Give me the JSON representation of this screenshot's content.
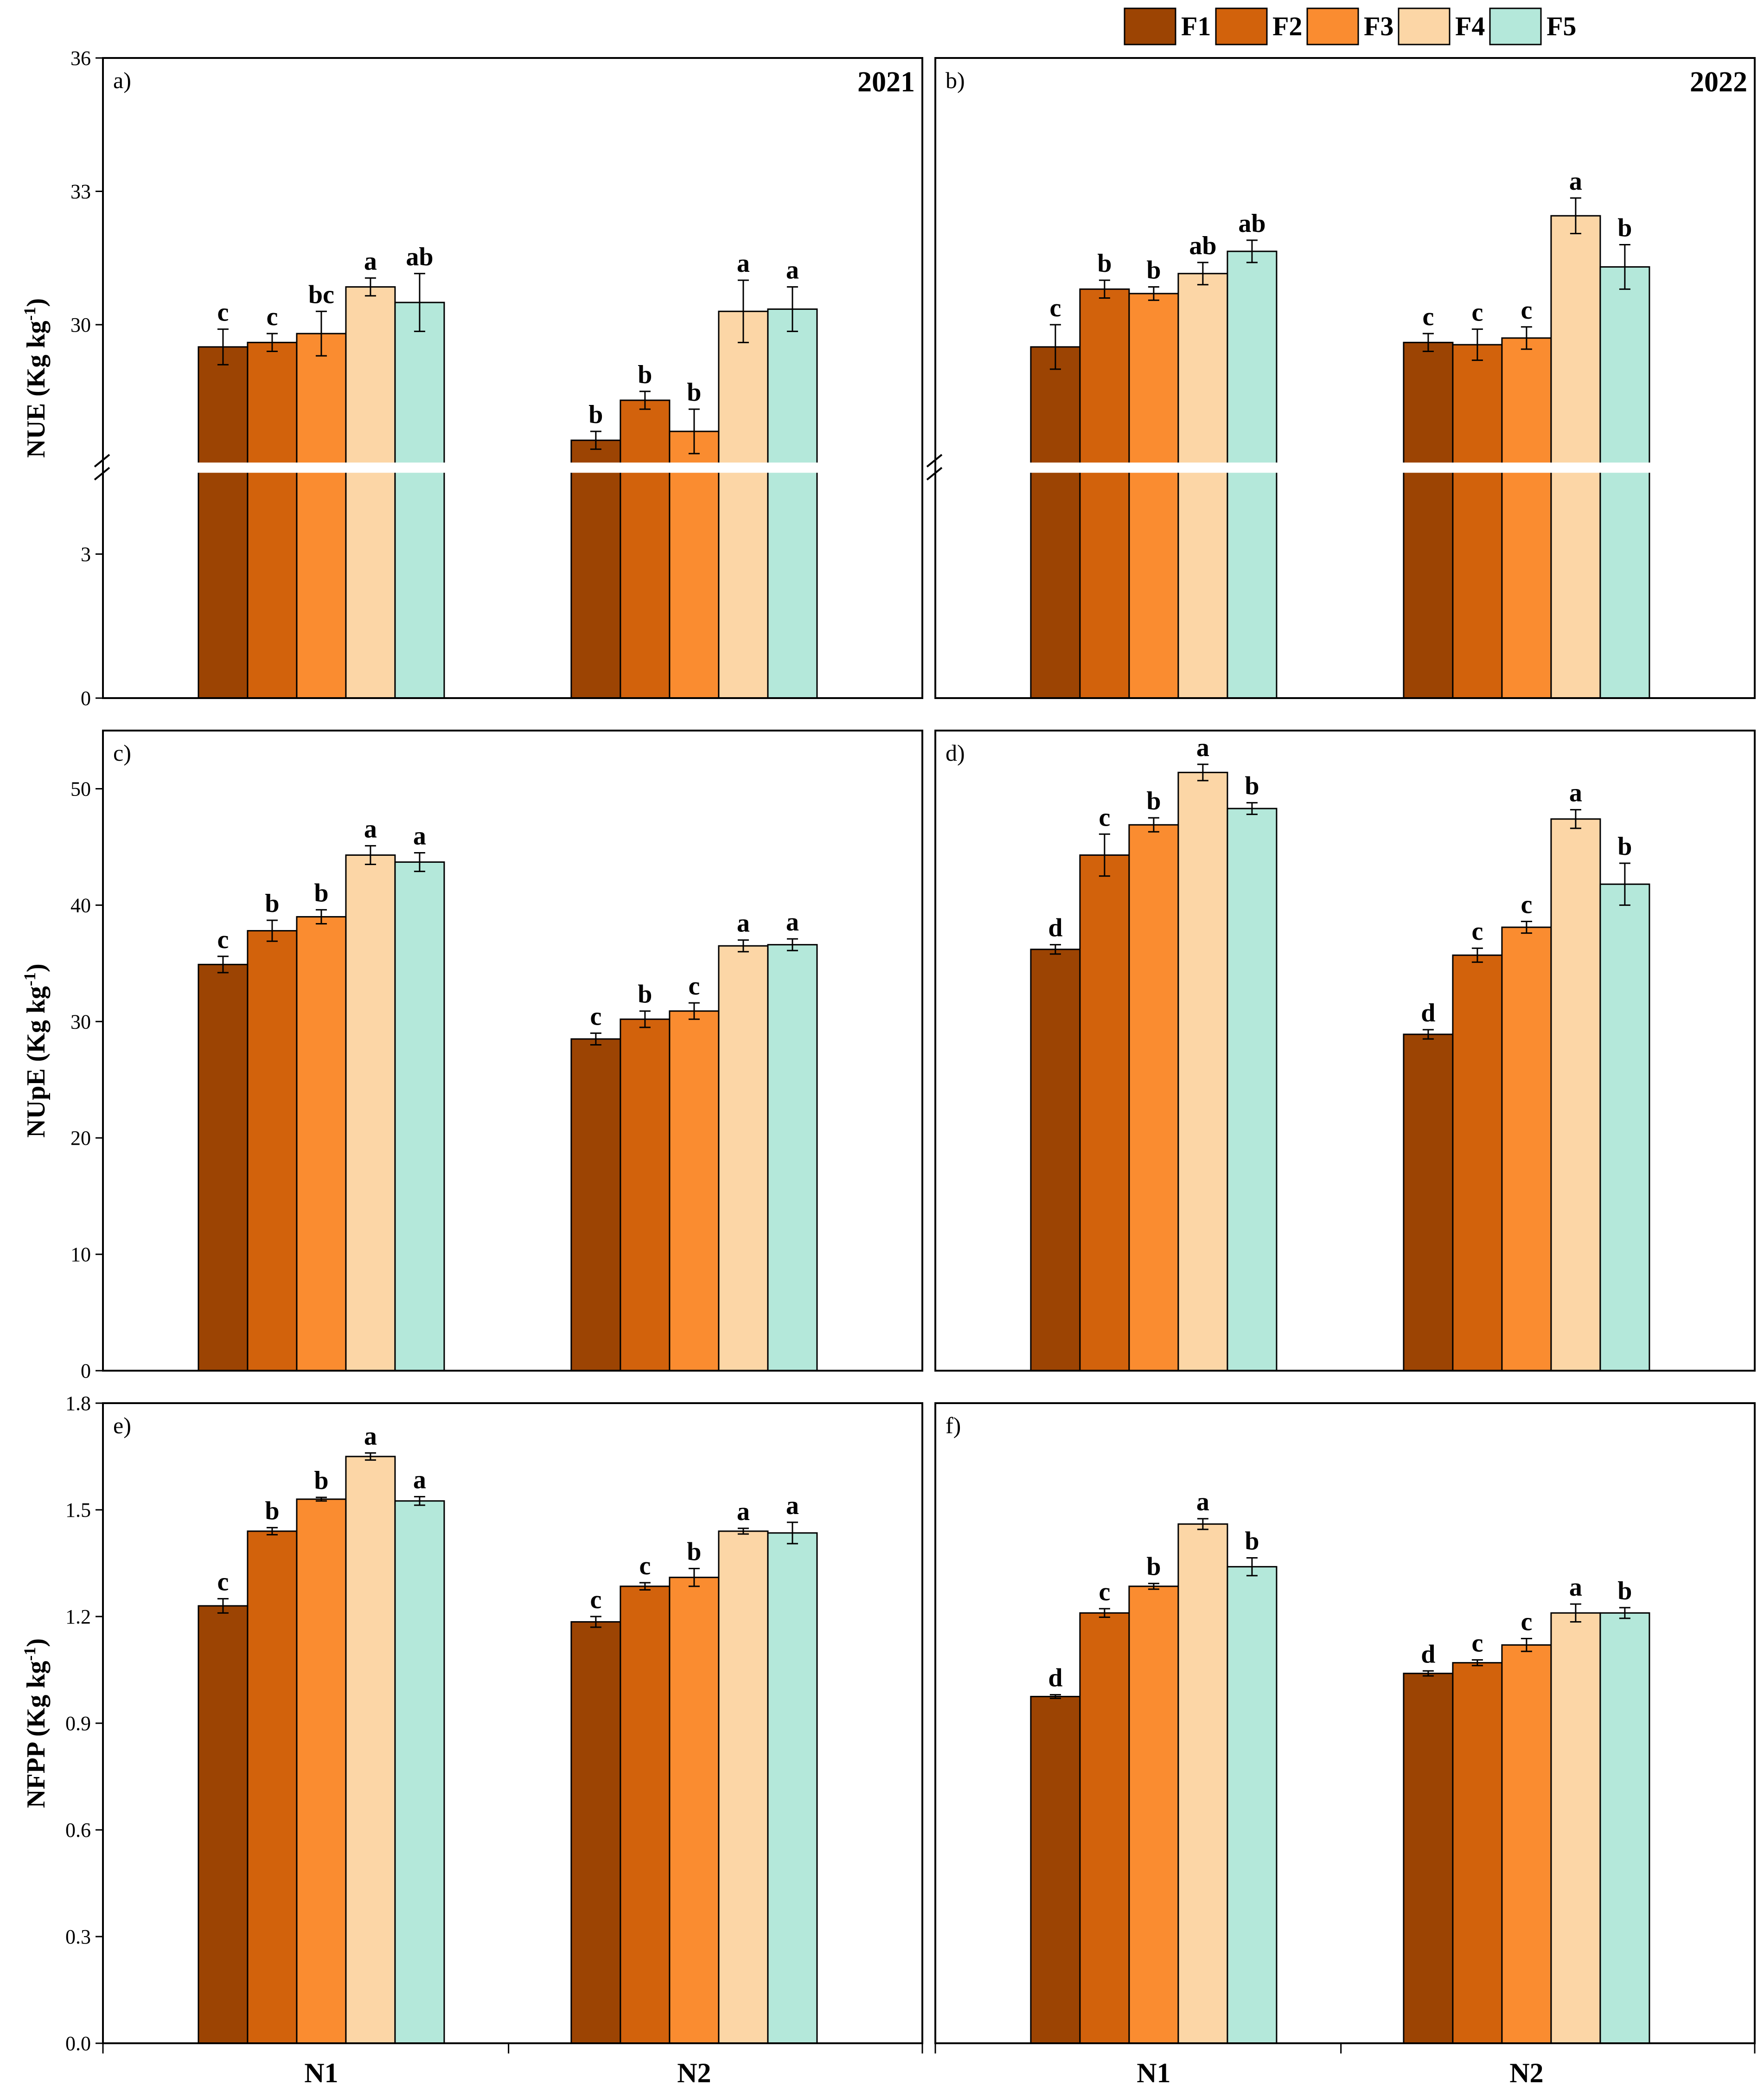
{
  "colors": {
    "F1": "#9C4403",
    "F2": "#D2620C",
    "F3": "#FA8C30",
    "F4": "#FCD6A6",
    "F5": "#B4E8DA"
  },
  "legend": [
    "F1",
    "F2",
    "F3",
    "F4",
    "F5"
  ],
  "groups": [
    "N1",
    "N2"
  ],
  "chart_data": [
    {
      "type": "bar",
      "panel": "a)",
      "year": "2021",
      "ylabel": "NUE (Kg kg",
      "ylabel_sup": "-1",
      "ylabel_end": ")",
      "axis_break": true,
      "lower_range": [
        0,
        4.6
      ],
      "upper_range": [
        27,
        36
      ],
      "yticks": [
        {
          "v": 0,
          "label": "0"
        },
        {
          "v": 3,
          "label": "3"
        },
        {
          "v": 30,
          "label": "30"
        },
        {
          "v": 33,
          "label": "33"
        },
        {
          "v": 36,
          "label": "36"
        }
      ],
      "categories": [
        "N1",
        "N2"
      ],
      "series": [
        {
          "name": "F1",
          "values": [
            29.5,
            27.4
          ],
          "errors": [
            0.4,
            0.2
          ],
          "letters": [
            "c",
            "b"
          ]
        },
        {
          "name": "F2",
          "values": [
            29.6,
            28.3
          ],
          "errors": [
            0.2,
            0.2
          ],
          "letters": [
            "c",
            "b"
          ]
        },
        {
          "name": "F3",
          "values": [
            29.8,
            27.6
          ],
          "errors": [
            0.5,
            0.5
          ],
          "letters": [
            "bc",
            "b"
          ]
        },
        {
          "name": "F4",
          "values": [
            30.85,
            30.3
          ],
          "errors": [
            0.2,
            0.7
          ],
          "letters": [
            "a",
            "a"
          ]
        },
        {
          "name": "F5",
          "values": [
            30.5,
            30.35
          ],
          "errors": [
            0.65,
            0.5
          ],
          "letters": [
            "ab",
            "a"
          ]
        }
      ]
    },
    {
      "type": "bar",
      "panel": "b)",
      "year": "2022",
      "axis_break": true,
      "lower_range": [
        0,
        4.6
      ],
      "upper_range": [
        27,
        36
      ],
      "yticks": [],
      "categories": [
        "N1",
        "N2"
      ],
      "series": [
        {
          "name": "F1",
          "values": [
            29.5,
            29.6
          ],
          "errors": [
            0.5,
            0.2
          ],
          "letters": [
            "c",
            "c"
          ]
        },
        {
          "name": "F2",
          "values": [
            30.8,
            29.55
          ],
          "errors": [
            0.2,
            0.35
          ],
          "letters": [
            "b",
            "c"
          ]
        },
        {
          "name": "F3",
          "values": [
            30.7,
            29.7
          ],
          "errors": [
            0.15,
            0.25
          ],
          "letters": [
            "b",
            "c"
          ]
        },
        {
          "name": "F4",
          "values": [
            31.15,
            32.45
          ],
          "errors": [
            0.25,
            0.4
          ],
          "letters": [
            "ab",
            "a"
          ]
        },
        {
          "name": "F5",
          "values": [
            31.65,
            31.3
          ],
          "errors": [
            0.25,
            0.5
          ],
          "letters": [
            "ab",
            "b"
          ]
        }
      ]
    },
    {
      "type": "bar",
      "panel": "c)",
      "ylabel": "NUpE (Kg kg",
      "ylabel_sup": "-1",
      "ylabel_end": ")",
      "ylim": [
        0,
        55
      ],
      "yticks": [
        {
          "v": 0,
          "label": "0"
        },
        {
          "v": 10,
          "label": "10"
        },
        {
          "v": 20,
          "label": "20"
        },
        {
          "v": 30,
          "label": "30"
        },
        {
          "v": 40,
          "label": "40"
        },
        {
          "v": 50,
          "label": "50"
        }
      ],
      "categories": [
        "N1",
        "N2"
      ],
      "series": [
        {
          "name": "F1",
          "values": [
            34.9,
            28.5
          ],
          "errors": [
            0.7,
            0.5
          ],
          "letters": [
            "c",
            "c"
          ]
        },
        {
          "name": "F2",
          "values": [
            37.8,
            30.2
          ],
          "errors": [
            0.9,
            0.7
          ],
          "letters": [
            "b",
            "b"
          ]
        },
        {
          "name": "F3",
          "values": [
            39.0,
            30.9
          ],
          "errors": [
            0.6,
            0.7
          ],
          "letters": [
            "b",
            "c"
          ]
        },
        {
          "name": "F4",
          "values": [
            44.3,
            36.5
          ],
          "errors": [
            0.8,
            0.5
          ],
          "letters": [
            "a",
            "a"
          ]
        },
        {
          "name": "F5",
          "values": [
            43.7,
            36.6
          ],
          "errors": [
            0.8,
            0.5
          ],
          "letters": [
            "a",
            "a"
          ]
        }
      ]
    },
    {
      "type": "bar",
      "panel": "d)",
      "ylim": [
        0,
        55
      ],
      "yticks": [],
      "categories": [
        "N1",
        "N2"
      ],
      "series": [
        {
          "name": "F1",
          "values": [
            36.2,
            28.9
          ],
          "errors": [
            0.4,
            0.4
          ],
          "letters": [
            "d",
            "d"
          ]
        },
        {
          "name": "F2",
          "values": [
            44.3,
            35.7
          ],
          "errors": [
            1.8,
            0.6
          ],
          "letters": [
            "c",
            "c"
          ]
        },
        {
          "name": "F3",
          "values": [
            46.9,
            38.1
          ],
          "errors": [
            0.6,
            0.5
          ],
          "letters": [
            "b",
            "c"
          ]
        },
        {
          "name": "F4",
          "values": [
            51.4,
            47.4
          ],
          "errors": [
            0.7,
            0.8
          ],
          "letters": [
            "a",
            "a"
          ]
        },
        {
          "name": "F5",
          "values": [
            48.3,
            41.8
          ],
          "errors": [
            0.5,
            1.8
          ],
          "letters": [
            "b",
            "b"
          ]
        }
      ]
    },
    {
      "type": "bar",
      "panel": "e)",
      "ylabel": "NFPP (Kg kg",
      "ylabel_sup": "-1",
      "ylabel_end": ")",
      "ylim": [
        0,
        1.8
      ],
      "yticks": [
        {
          "v": 0,
          "label": "0.0"
        },
        {
          "v": 0.3,
          "label": "0.3"
        },
        {
          "v": 0.6,
          "label": "0.6"
        },
        {
          "v": 0.9,
          "label": "0.9"
        },
        {
          "v": 1.2,
          "label": "1.2"
        },
        {
          "v": 1.5,
          "label": "1.5"
        },
        {
          "v": 1.8,
          "label": "1.8"
        }
      ],
      "categories": [
        "N1",
        "N2"
      ],
      "series": [
        {
          "name": "F1",
          "values": [
            1.23,
            1.185
          ],
          "errors": [
            0.02,
            0.015
          ],
          "letters": [
            "c",
            "c"
          ]
        },
        {
          "name": "F2",
          "values": [
            1.44,
            1.285
          ],
          "errors": [
            0.01,
            0.01
          ],
          "letters": [
            "b",
            "c"
          ]
        },
        {
          "name": "F3",
          "values": [
            1.53,
            1.31
          ],
          "errors": [
            0.005,
            0.025
          ],
          "letters": [
            "b",
            "b"
          ]
        },
        {
          "name": "F4",
          "values": [
            1.65,
            1.44
          ],
          "errors": [
            0.01,
            0.008
          ],
          "letters": [
            "a",
            "a"
          ]
        },
        {
          "name": "F5",
          "values": [
            1.525,
            1.435
          ],
          "errors": [
            0.012,
            0.03
          ],
          "letters": [
            "a",
            "a"
          ]
        }
      ]
    },
    {
      "type": "bar",
      "panel": "f)",
      "ylim": [
        0,
        1.8
      ],
      "yticks": [],
      "categories": [
        "N1",
        "N2"
      ],
      "series": [
        {
          "name": "F1",
          "values": [
            0.975,
            1.04
          ],
          "errors": [
            0.005,
            0.007
          ],
          "letters": [
            "d",
            "d"
          ]
        },
        {
          "name": "F2",
          "values": [
            1.21,
            1.07
          ],
          "errors": [
            0.012,
            0.008
          ],
          "letters": [
            "c",
            "c"
          ]
        },
        {
          "name": "F3",
          "values": [
            1.285,
            1.12
          ],
          "errors": [
            0.008,
            0.018
          ],
          "letters": [
            "b",
            "c"
          ]
        },
        {
          "name": "F4",
          "values": [
            1.46,
            1.21
          ],
          "errors": [
            0.015,
            0.025
          ],
          "letters": [
            "a",
            "a"
          ]
        },
        {
          "name": "F5",
          "values": [
            1.34,
            1.21
          ],
          "errors": [
            0.025,
            0.015
          ],
          "letters": [
            "b",
            "b"
          ]
        }
      ]
    }
  ]
}
